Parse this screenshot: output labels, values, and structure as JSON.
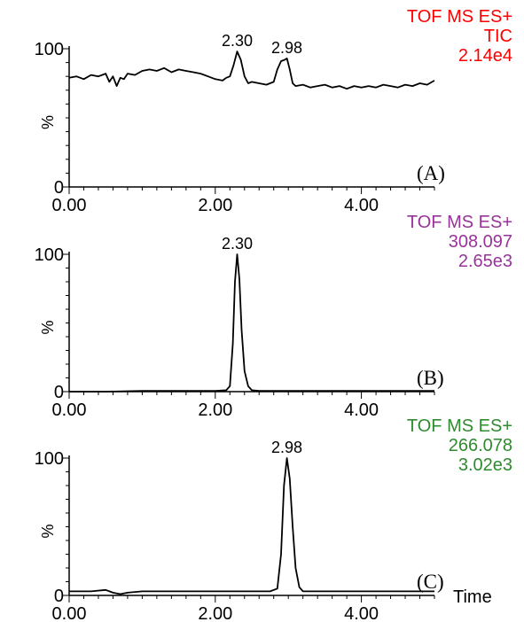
{
  "chart_data": [
    {
      "type": "line",
      "panel_label": "(A)",
      "info": [
        "TOF MS ES+",
        "TIC",
        "2.14e4"
      ],
      "info_color": "#ff0000",
      "xlim": [
        0,
        5
      ],
      "ylim": [
        0,
        100
      ],
      "x_ticks": [
        "0.00",
        "2.00",
        "4.00"
      ],
      "y_ticks": [
        "0",
        "100"
      ],
      "ylabel": "%",
      "xlabel": "",
      "peaks": [
        {
          "x": 2.3,
          "label": "2.30"
        },
        {
          "x": 2.98,
          "label": "2.98"
        }
      ],
      "series": [
        {
          "x": [
            0.0,
            0.1,
            0.2,
            0.3,
            0.4,
            0.5,
            0.55,
            0.6,
            0.65,
            0.7,
            0.75,
            0.8,
            0.9,
            1.0,
            1.1,
            1.2,
            1.3,
            1.4,
            1.5,
            1.6,
            1.7,
            1.8,
            1.9,
            2.0,
            2.1,
            2.15,
            2.2,
            2.25,
            2.3,
            2.35,
            2.4,
            2.45,
            2.5,
            2.6,
            2.7,
            2.8,
            2.85,
            2.9,
            2.95,
            2.98,
            3.02,
            3.06,
            3.1,
            3.2,
            3.3,
            3.4,
            3.5,
            3.6,
            3.7,
            3.8,
            3.9,
            4.0,
            4.1,
            4.2,
            4.3,
            4.4,
            4.5,
            4.6,
            4.7,
            4.8,
            4.9,
            5.0
          ],
          "values": [
            79,
            80,
            78,
            81,
            80,
            82,
            76,
            80,
            73,
            79,
            78,
            82,
            81,
            84,
            85,
            84,
            86,
            83,
            85,
            84,
            83,
            82,
            80,
            78,
            77,
            79,
            80,
            88,
            98,
            92,
            80,
            75,
            76,
            75,
            74,
            76,
            85,
            91,
            92,
            93,
            85,
            75,
            73,
            74,
            72,
            73,
            74,
            72,
            73,
            71,
            73,
            72,
            73,
            72,
            74,
            73,
            72,
            74,
            73,
            75,
            74,
            77
          ]
        }
      ]
    },
    {
      "type": "line",
      "panel_label": "(B)",
      "info": [
        "TOF MS ES+",
        "308.097",
        "2.65e3"
      ],
      "info_color": "#993399",
      "xlim": [
        0,
        5
      ],
      "ylim": [
        0,
        100
      ],
      "x_ticks": [
        "0.00",
        "2.00",
        "4.00"
      ],
      "y_ticks": [
        "0",
        "100"
      ],
      "ylabel": "%",
      "xlabel": "",
      "peaks": [
        {
          "x": 2.3,
          "label": "2.30"
        }
      ],
      "series": [
        {
          "x": [
            0.0,
            0.5,
            1.0,
            1.5,
            2.0,
            2.15,
            2.2,
            2.24,
            2.27,
            2.3,
            2.33,
            2.36,
            2.4,
            2.45,
            2.5,
            2.6,
            3.0,
            3.5,
            4.0,
            4.5,
            5.0
          ],
          "values": [
            0,
            0,
            0.5,
            0.5,
            0.5,
            1,
            4,
            35,
            80,
            100,
            82,
            45,
            15,
            4,
            1,
            0.5,
            0.5,
            0.5,
            0.5,
            0.5,
            0.5
          ]
        }
      ]
    },
    {
      "type": "line",
      "panel_label": "(C)",
      "info": [
        "TOF MS ES+",
        "266.078",
        "3.02e3"
      ],
      "info_color": "#2e8b2e",
      "xlim": [
        0,
        5
      ],
      "ylim": [
        0,
        100
      ],
      "x_ticks": [
        "0.00",
        "2.00",
        "4.00"
      ],
      "y_ticks": [
        "0",
        "100"
      ],
      "ylabel": "%",
      "xlabel": "Time",
      "peaks": [
        {
          "x": 2.98,
          "label": "2.98"
        }
      ],
      "series": [
        {
          "x": [
            0.0,
            0.3,
            0.5,
            0.6,
            0.7,
            0.8,
            1.0,
            1.5,
            2.0,
            2.5,
            2.75,
            2.85,
            2.9,
            2.94,
            2.98,
            3.02,
            3.06,
            3.1,
            3.15,
            3.2,
            3.3,
            3.6,
            4.0,
            4.5,
            5.0
          ],
          "values": [
            3,
            3,
            4,
            2,
            1,
            2,
            3,
            3,
            3,
            3,
            3,
            5,
            30,
            80,
            100,
            85,
            50,
            20,
            6,
            3,
            3,
            3,
            3,
            3,
            3
          ]
        }
      ]
    }
  ]
}
